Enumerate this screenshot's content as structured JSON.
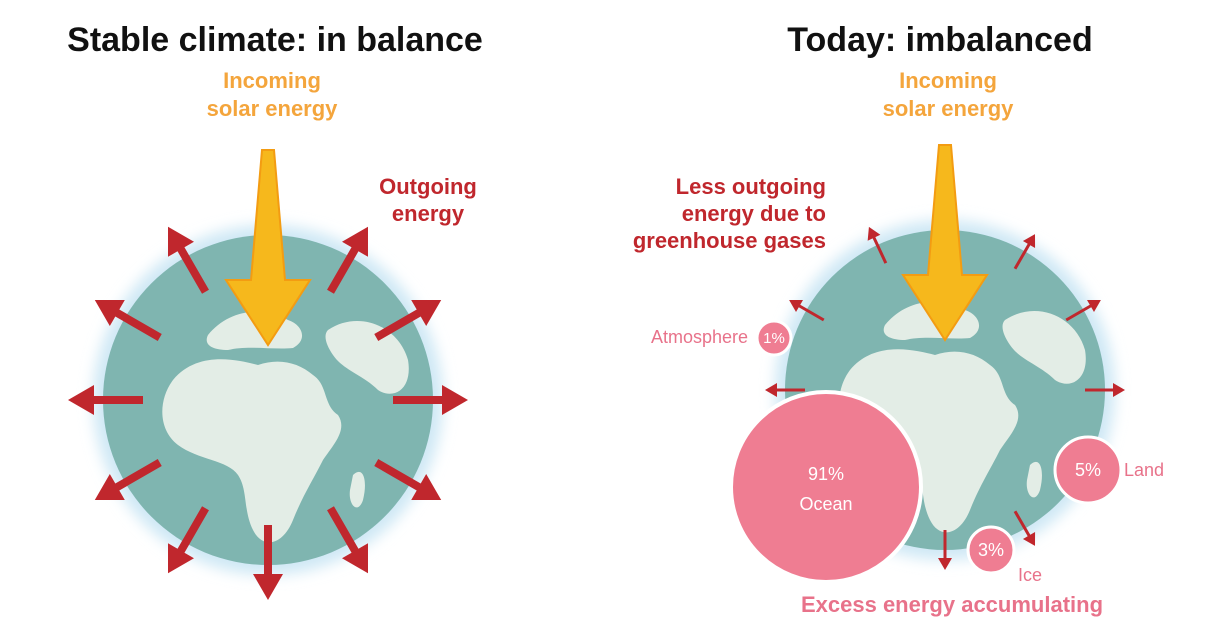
{
  "left": {
    "title": "Stable climate: in balance",
    "incoming": [
      "Incoming",
      "solar energy"
    ],
    "outgoing": [
      "Outgoing",
      "energy"
    ]
  },
  "right": {
    "title": "Today: imbalanced",
    "incoming": [
      "Incoming",
      "solar energy"
    ],
    "outgoing": [
      "Less outgoing",
      "energy due to",
      "greenhouse gases"
    ],
    "reservoirs": [
      {
        "percent": "1%",
        "label": "Atmosphere"
      },
      {
        "percent": "91%",
        "label": "Ocean"
      },
      {
        "percent": "5%",
        "label": "Land"
      },
      {
        "percent": "3%",
        "label": "Ice"
      }
    ],
    "caption": "Excess energy accumulating"
  }
}
